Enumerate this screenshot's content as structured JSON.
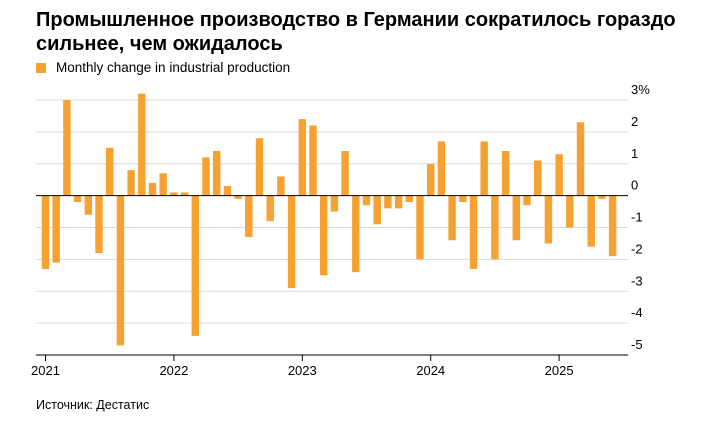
{
  "title": "Промышленное производство в Германии сократилось гораздо сильнее, чем ожидалось",
  "source": "Источник: Дестатис",
  "colors": {
    "bar": "#f7a130",
    "grid": "#d9d9d9",
    "zero": "#000000"
  },
  "chart_data": {
    "type": "bar",
    "legend": "Monthly change in industrial production",
    "legend_position": "top-left",
    "grid": true,
    "y_axis": {
      "position": "right",
      "ylim": [
        -5,
        3
      ],
      "ticks": [
        3,
        2,
        1,
        0,
        -1,
        -2,
        -3,
        -4,
        -5
      ],
      "tick_labels": [
        "3%",
        "2",
        "1",
        "0",
        "-1",
        "-2",
        "-3",
        "-4",
        "-5"
      ]
    },
    "x_axis": {
      "tick_labels": [
        "2021",
        "2022",
        "2023",
        "2024",
        "2025"
      ],
      "start": "2021-01",
      "months_per_tick": 12
    },
    "series": [
      {
        "values": [
          -2.3,
          -2.1,
          3.0,
          -0.2,
          -0.6,
          -1.8,
          1.5,
          -4.7,
          0.8,
          3.2,
          0.4,
          0.7,
          0.1,
          0.1,
          -4.4,
          1.2,
          1.4,
          0.3,
          -0.1,
          -1.3,
          1.8,
          -0.8,
          0.6,
          -2.9,
          2.4,
          2.2,
          -2.5,
          -0.5,
          1.4,
          -2.4,
          -0.3,
          -0.9,
          -0.4,
          -0.4,
          -0.2,
          -2.0,
          1.0,
          1.7,
          -1.4,
          -0.2,
          -2.3,
          1.7,
          -2.0,
          1.4,
          -1.4,
          -0.3,
          1.1,
          -1.5,
          1.3,
          -1.0,
          2.3,
          -1.6,
          -0.1,
          -1.9
        ]
      }
    ]
  }
}
